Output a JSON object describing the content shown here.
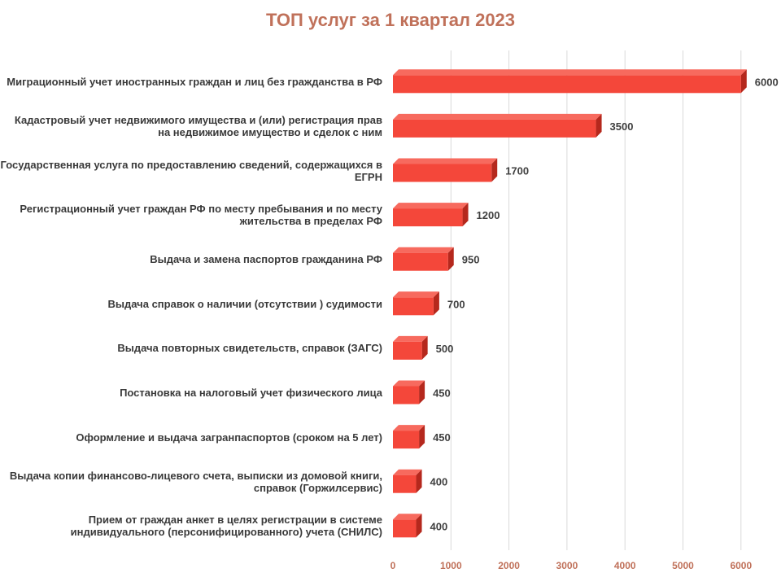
{
  "chart_data": {
    "type": "bar",
    "orientation": "horizontal",
    "title": "ТОП услуг за 1 квартал 2023",
    "categories": [
      "Миграционный учет иностранных граждан и лиц без гражданства в РФ",
      "Кадастровый учет недвижимого имущества и (или)  регистрация прав на недвижимое имущество и сделок с ним",
      "Государственная услуга по предоставлению сведений, содержащихся в ЕГРН",
      "Регистрационный учет граждан РФ по месту пребывания и по месту жительства в пределах РФ",
      "Выдача и замена паспортов гражданина РФ",
      "Выдача справок о наличии (отсутствии ) судимости",
      "Выдача повторных свидетельств, справок (ЗАГС)",
      "Постановка на налоговый учет физического лица",
      "Оформление и выдача загранпаспортов  (сроком на 5 лет)",
      "Выдача копии финансово-лицевого счета, выписки из домовой книги, справок (Горжилсервис)",
      "Прием от граждан анкет в целях регистрации в системе индивидуального (персонифицированного) учета (СНИЛС)"
    ],
    "values": [
      6000,
      3500,
      1700,
      1200,
      950,
      700,
      500,
      450,
      450,
      400,
      400
    ],
    "xlim": [
      0,
      6000
    ],
    "x_ticks": [
      0,
      1000,
      2000,
      3000,
      4000,
      5000,
      6000
    ],
    "grid": true,
    "legend": "none",
    "colors": {
      "bar_front": "#f4473a",
      "bar_top": "#f76a5e",
      "bar_side": "#b5281d",
      "title": "#c0715a",
      "gridline": "#d9d9d9"
    }
  }
}
